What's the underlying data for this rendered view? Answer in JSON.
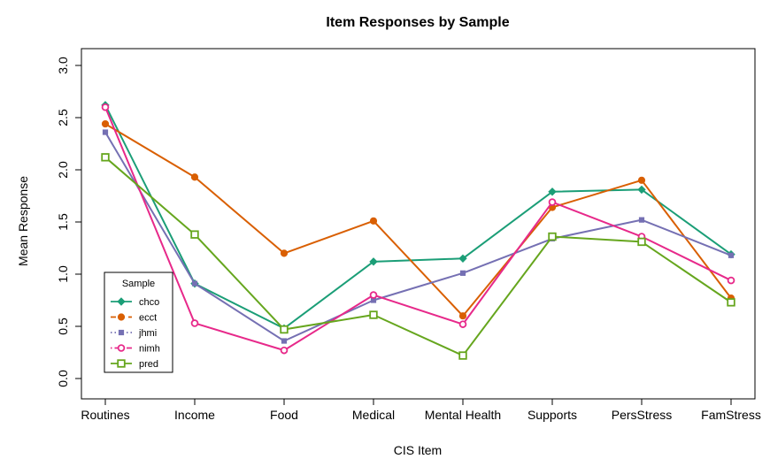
{
  "chart_data": {
    "type": "line",
    "title": "Item Responses by Sample",
    "xlabel": "CIS Item",
    "ylabel": "Mean Response",
    "categories": [
      "Routines",
      "Income",
      "Food",
      "Medical",
      "Mental Health",
      "Supports",
      "PersStress",
      "FamStress"
    ],
    "ylim": [
      0,
      3
    ],
    "yticks": [
      "0.0",
      "0.5",
      "1.0",
      "1.5",
      "2.0",
      "2.5",
      "3.0"
    ],
    "grid": false,
    "legend": {
      "title": "Sample",
      "position": "bottom-left"
    },
    "series": [
      {
        "name": "chco",
        "color": "#1b9e77",
        "marker": "diamond",
        "dash": "solid",
        "values": [
          2.62,
          0.91,
          0.48,
          1.12,
          1.15,
          1.79,
          1.81,
          1.19
        ]
      },
      {
        "name": "ecct",
        "color": "#d95f02",
        "marker": "circle",
        "dash": "dashed",
        "values": [
          2.44,
          1.93,
          1.2,
          1.51,
          0.6,
          1.64,
          1.9,
          0.77
        ]
      },
      {
        "name": "jhmi",
        "color": "#7570b3",
        "marker": "square",
        "dash": "dotted",
        "values": [
          2.36,
          0.91,
          0.36,
          0.75,
          1.01,
          1.34,
          1.52,
          1.18
        ]
      },
      {
        "name": "nimh",
        "color": "#e7298a",
        "marker": "open-circle",
        "dash": "dotdash",
        "values": [
          2.6,
          0.53,
          0.27,
          0.8,
          0.52,
          1.69,
          1.36,
          0.94
        ]
      },
      {
        "name": "pred",
        "color": "#66a61e",
        "marker": "open-square",
        "dash": "longdash",
        "values": [
          2.12,
          1.38,
          0.47,
          0.61,
          0.22,
          1.36,
          1.31,
          0.73
        ]
      }
    ]
  }
}
